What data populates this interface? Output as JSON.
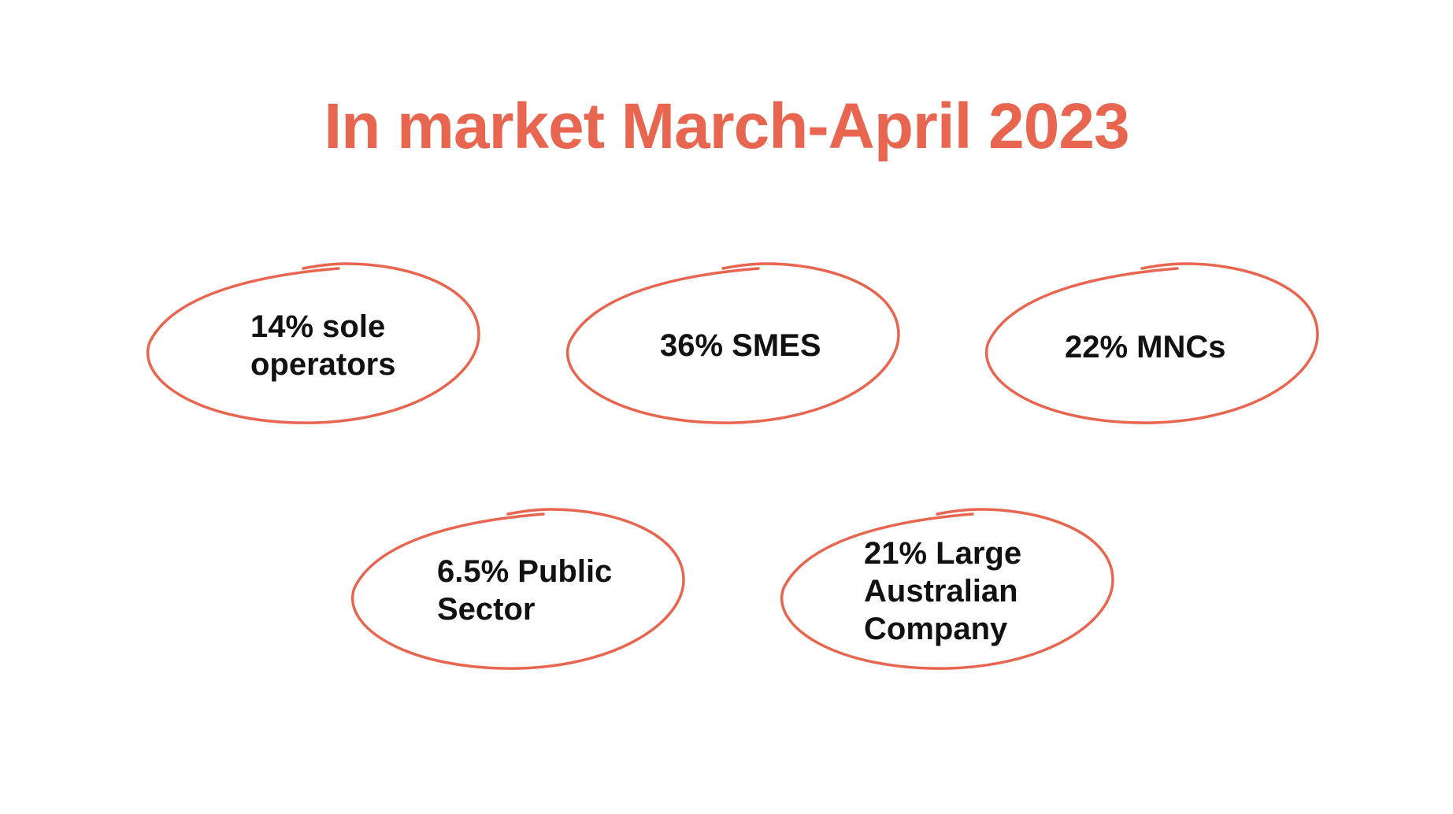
{
  "colors": {
    "accent": "#E8664F",
    "text": "#111111",
    "background": "#FFFFFF"
  },
  "title": "In market March-April 2023",
  "stats": [
    {
      "lines": [
        "14% sole",
        "operators"
      ]
    },
    {
      "lines": [
        "36% SMES"
      ]
    },
    {
      "lines": [
        "22% MNCs"
      ]
    },
    {
      "lines": [
        "6.5% Public",
        "Sector"
      ]
    },
    {
      "lines": [
        "21% Large",
        "Australian",
        "Company"
      ]
    }
  ]
}
